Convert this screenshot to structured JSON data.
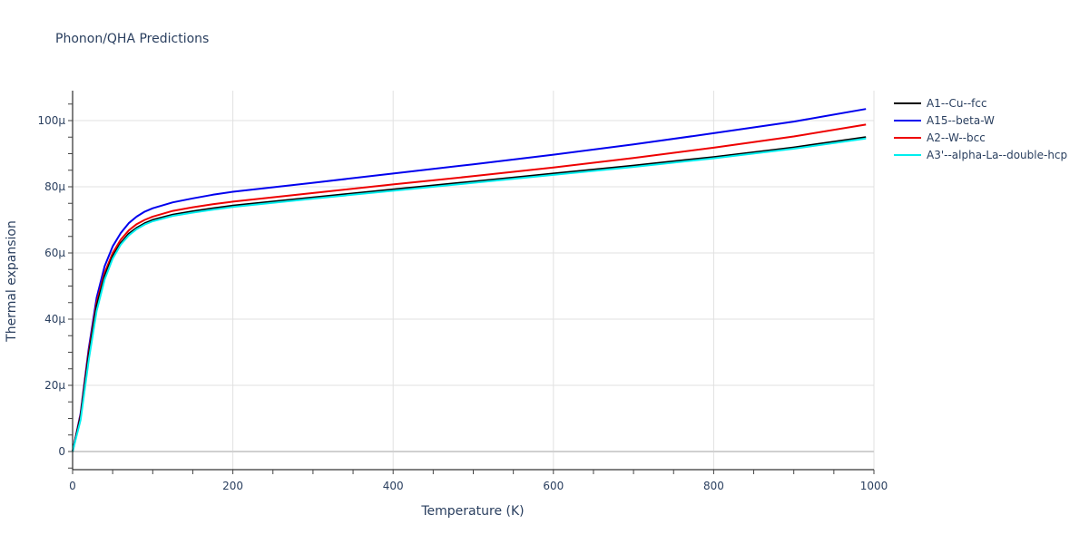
{
  "title": "Phonon/QHA Predictions",
  "chart_data": {
    "type": "line",
    "title": "Phonon/QHA Predictions",
    "xlabel": "Temperature (K)",
    "ylabel": "Thermal expansion",
    "xlim": [
      0,
      1000
    ],
    "ylim": [
      -6e-06,
      0.00011
    ],
    "grid": true,
    "legend_position": "right",
    "x_ticks": [
      0,
      200,
      400,
      600,
      800,
      1000
    ],
    "x_tick_labels": [
      "0",
      "200",
      "400",
      "600",
      "800",
      "1000"
    ],
    "y_ticks": [
      0,
      2e-05,
      4e-05,
      6e-05,
      8e-05,
      0.0001
    ],
    "y_tick_labels": [
      "0",
      "20μ",
      "40μ",
      "60μ",
      "80μ",
      "100μ"
    ],
    "x": [
      0,
      10,
      20,
      30,
      40,
      50,
      60,
      70,
      80,
      90,
      100,
      125,
      150,
      175,
      200,
      300,
      400,
      500,
      600,
      700,
      800,
      900,
      990
    ],
    "series": [
      {
        "name": "A1--Cu--fcc",
        "color": "#000000",
        "values_micro": [
          0,
          10.5,
          29,
          44,
          53,
          59,
          63,
          65.8,
          67.6,
          69,
          70,
          71.6,
          72.6,
          73.5,
          74.3,
          76.8,
          79.2,
          81.6,
          84,
          86.4,
          89,
          91.9,
          95
        ]
      },
      {
        "name": "A15--beta-W",
        "color": "#0000ee",
        "values_micro": [
          0,
          11.5,
          31,
          46.5,
          56,
          62,
          66,
          69,
          71,
          72.5,
          73.5,
          75.3,
          76.5,
          77.6,
          78.5,
          81.2,
          84,
          86.8,
          89.7,
          92.8,
          96.2,
          99.7,
          103.5
        ]
      },
      {
        "name": "A2--W--bcc",
        "color": "#ee0000",
        "values_micro": [
          0,
          11,
          30,
          45,
          54,
          60,
          64,
          66.8,
          68.7,
          70,
          71,
          72.7,
          73.8,
          74.7,
          75.5,
          78.1,
          80.7,
          83.2,
          85.8,
          88.7,
          91.8,
          95.2,
          98.8
        ]
      },
      {
        "name": "A3'--alpha-La--double-hcp",
        "color": "#00eeee",
        "values_micro": [
          0,
          9.5,
          27.5,
          42.5,
          52,
          58.3,
          62.5,
          65.3,
          67.2,
          68.6,
          69.6,
          71.2,
          72.2,
          73.1,
          73.9,
          76.4,
          78.8,
          81.2,
          83.6,
          86,
          88.6,
          91.5,
          94.6
        ]
      }
    ]
  },
  "legend": {
    "items": [
      {
        "label": "A1--Cu--fcc",
        "color": "#000000"
      },
      {
        "label": "A15--beta-W",
        "color": "#0000ee"
      },
      {
        "label": "A2--W--bcc",
        "color": "#ee0000"
      },
      {
        "label": "A3'--alpha-La--double-hcp",
        "color": "#00eeee"
      }
    ]
  }
}
